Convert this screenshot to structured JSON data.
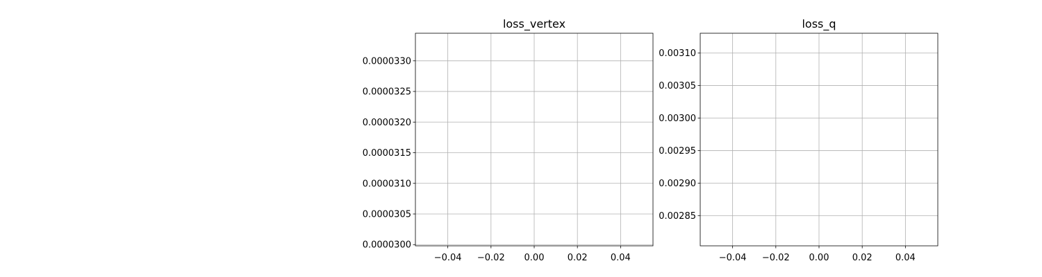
{
  "chart_data": [
    {
      "type": "line",
      "title": "loss_vertex",
      "xlabel": "",
      "ylabel": "",
      "series": [],
      "xlim": [
        -0.055,
        0.055
      ],
      "ylim": [
        2.998e-05,
        3.345e-05
      ],
      "xticks": [
        -0.04,
        -0.02,
        0.0,
        0.02,
        0.04
      ],
      "xtick_labels": [
        "−0.04",
        "−0.02",
        "0.00",
        "0.02",
        "0.04"
      ],
      "yticks": [
        3e-05,
        3.05e-05,
        3.1e-05,
        3.15e-05,
        3.2e-05,
        3.25e-05,
        3.3e-05
      ],
      "ytick_labels": [
        "0.0000300",
        "0.0000305",
        "0.0000310",
        "0.0000315",
        "0.0000320",
        "0.0000325",
        "0.0000330"
      ],
      "grid": true
    },
    {
      "type": "line",
      "title": "loss_q",
      "xlabel": "",
      "ylabel": "",
      "series": [],
      "xlim": [
        -0.055,
        0.055
      ],
      "ylim": [
        0.0028035,
        0.0031305
      ],
      "xticks": [
        -0.04,
        -0.02,
        0.0,
        0.02,
        0.04
      ],
      "xtick_labels": [
        "−0.04",
        "−0.02",
        "0.00",
        "0.02",
        "0.04"
      ],
      "yticks": [
        0.00285,
        0.0029,
        0.00295,
        0.003,
        0.00305,
        0.0031
      ],
      "ytick_labels": [
        "0.00285",
        "0.00290",
        "0.00295",
        "0.00300",
        "0.00305",
        "0.00310"
      ],
      "grid": true
    }
  ]
}
